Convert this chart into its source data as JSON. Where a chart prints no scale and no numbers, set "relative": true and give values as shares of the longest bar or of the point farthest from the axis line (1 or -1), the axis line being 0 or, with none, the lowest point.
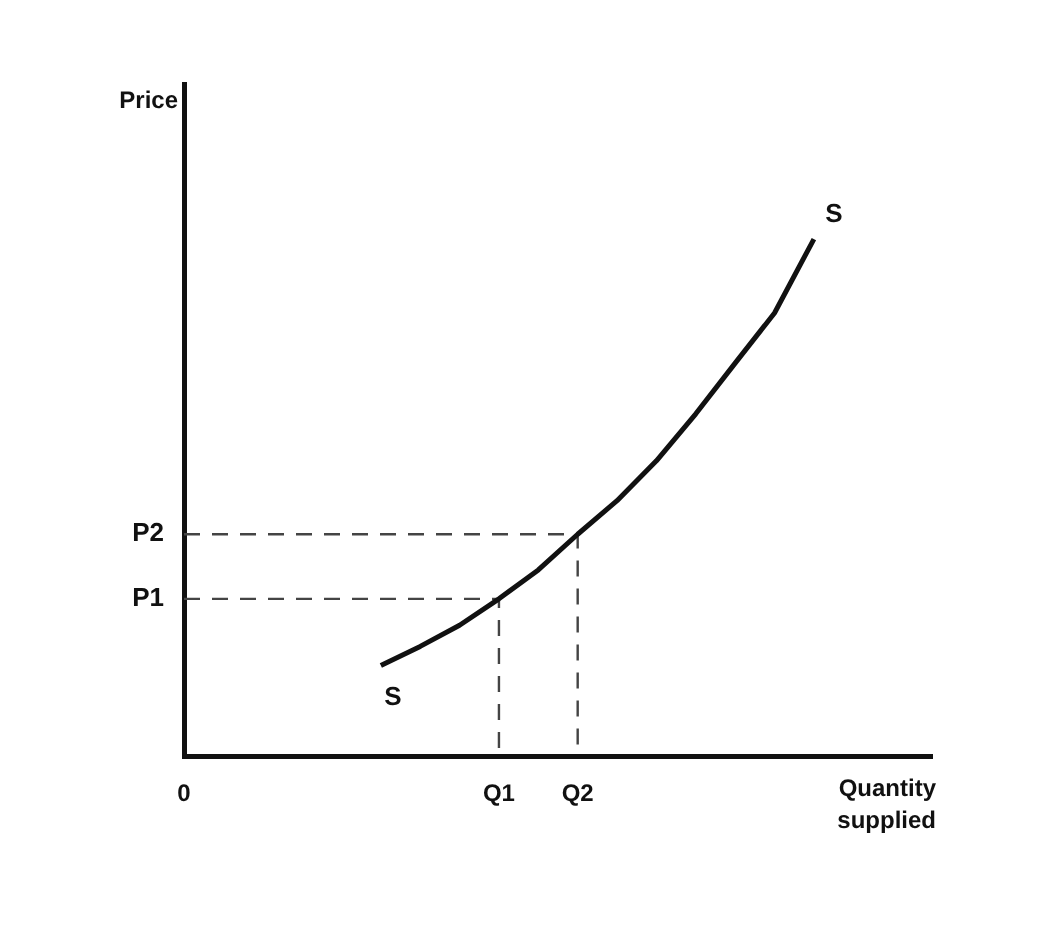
{
  "chart_data": {
    "type": "line",
    "xlabel": "Quantity supplied",
    "relative": true,
    "categories": [
      "0",
      null,
      null,
      null,
      null,
      null,
      null,
      null,
      "Q1",
      null,
      "Q2",
      null,
      null,
      null,
      null,
      null,
      null,
      null,
      null,
      null
    ],
    "annotations": [
      "P1",
      "P2",
      "S",
      "S",
      "Price"
    ],
    "series": [
      {
        "color": "#111111",
        "values": [
          null,
          null,
          null,
          null,
          null,
          0.175,
          0.212,
          0.253,
          0.304,
          0.36,
          0.429,
          0.494,
          0.571,
          0.662,
          0.76,
          0.857,
          1,
          null,
          null,
          null
        ]
      }
    ]
  }
}
